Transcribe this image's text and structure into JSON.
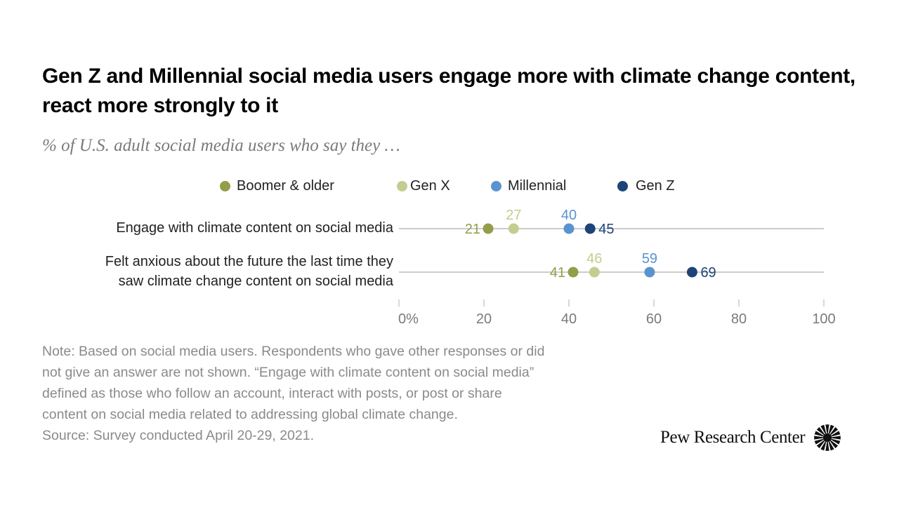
{
  "header": {
    "title": "Gen Z and Millennial social media users engage more with climate change content, react more strongly to it",
    "subtitle": "% of U.S. adult social media users who say they …"
  },
  "chart_data": {
    "type": "scatter",
    "subtype": "dot-plot",
    "title": "Gen Z and Millennial social media users engage more with climate change content, react more strongly to it",
    "subtitle": "% of U.S. adult social media users who say they …",
    "xlabel": "",
    "ylabel": "",
    "xlim": [
      0,
      100
    ],
    "x_ticks": [
      0,
      20,
      40,
      60,
      80,
      100
    ],
    "x_tick_labels": [
      "0%",
      "20",
      "40",
      "60",
      "80",
      "100"
    ],
    "grid": false,
    "legend_position": "top",
    "categories": [
      "Engage with climate content on social media",
      "Felt anxious about the future the last time they saw climate change content on social media"
    ],
    "category_lines": [
      [
        "Engage with climate content on social media"
      ],
      [
        "Felt anxious about the future the last time they",
        "saw climate change content on social media"
      ]
    ],
    "series": [
      {
        "name": "Boomer & older",
        "color": "#949d48",
        "values": [
          21,
          41
        ]
      },
      {
        "name": "Gen X",
        "color": "#c3cd8f",
        "values": [
          27,
          46
        ]
      },
      {
        "name": "Millennial",
        "color": "#5b93cf",
        "values": [
          40,
          59
        ]
      },
      {
        "name": "Gen Z",
        "color": "#1d4478",
        "values": [
          45,
          69
        ]
      }
    ]
  },
  "footer": {
    "note": "Note: Based on social media users. Respondents who gave other responses or did not give an answer are not shown. “Engage with climate content on social media” defined as those who follow an account, interact with posts, or post or share content on social media related to addressing global climate change.",
    "note_lines": [
      "Note: Based on social media users. Respondents who gave other responses or did",
      "not give an answer are not shown. “Engage with climate content on social media”",
      "defined as those who follow an account, interact with posts, or post or share",
      "content on social media related to addressing global climate change."
    ],
    "source": "Source: Survey conducted April 20-29, 2021.",
    "logo_text": "Pew Research Center",
    "logo_icon": "pew-sunburst-icon"
  }
}
